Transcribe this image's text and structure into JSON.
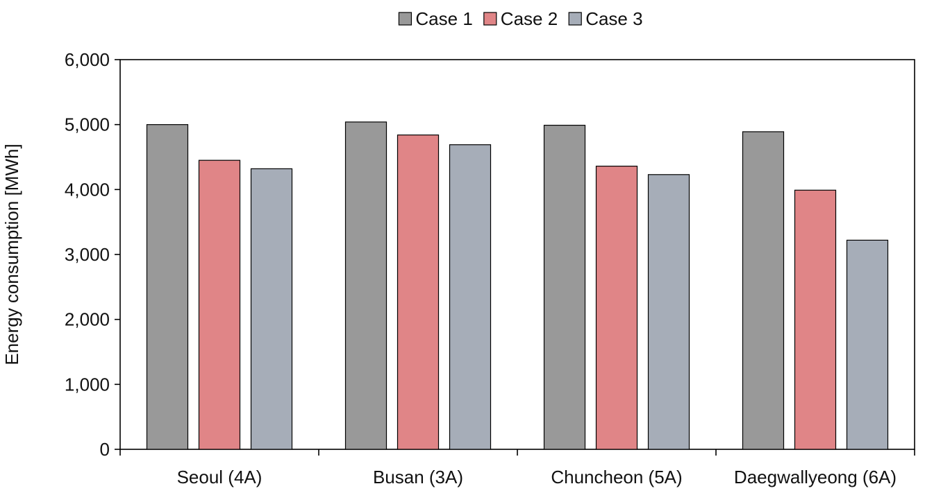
{
  "chart_data": {
    "type": "bar",
    "title": "",
    "xlabel": "",
    "ylabel": "Energy consumption [MWh]",
    "ylim": [
      0,
      6000
    ],
    "yticks": [
      0,
      1000,
      2000,
      3000,
      4000,
      5000,
      6000
    ],
    "ytick_labels": [
      "0",
      "1,000",
      "2,000",
      "3,000",
      "4,000",
      "5,000",
      "6,000"
    ],
    "categories": [
      "Seoul (4A)",
      "Busan (3A)",
      "Chuncheon (5A)",
      "Daegwallyeong (6A)"
    ],
    "series": [
      {
        "name": "Case 1",
        "color": "#999999",
        "values": [
          5000,
          5040,
          4990,
          4890
        ]
      },
      {
        "name": "Case 2",
        "color": "#e08587",
        "values": [
          4450,
          4840,
          4360,
          3990
        ]
      },
      {
        "name": "Case 3",
        "color": "#a6adb8",
        "values": [
          4320,
          4690,
          4230,
          3220
        ]
      }
    ],
    "grid": false,
    "legend_position": "top-center"
  }
}
